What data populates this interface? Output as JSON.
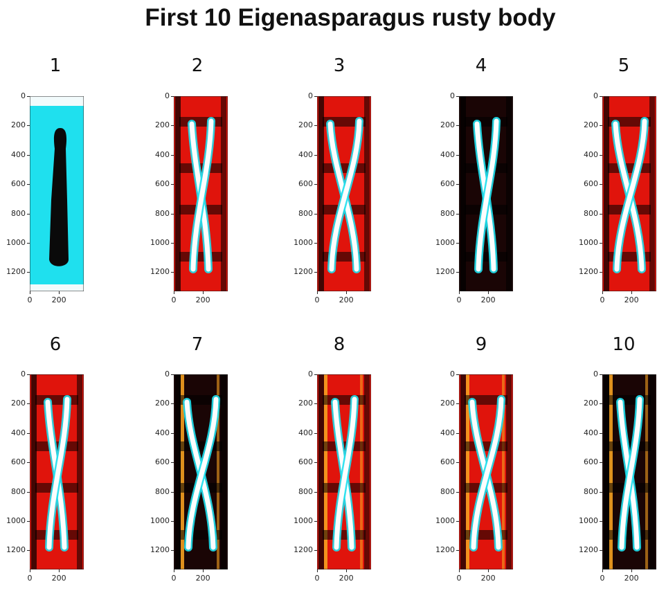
{
  "title": "First 10 Eigenasparagus rusty body",
  "panels": [
    {
      "label": "1",
      "style": "mean"
    },
    {
      "label": "2",
      "style": "eigen"
    },
    {
      "label": "3",
      "style": "eigen"
    },
    {
      "label": "4",
      "style": "eigen"
    },
    {
      "label": "5",
      "style": "eigen"
    },
    {
      "label": "6",
      "style": "eigen"
    },
    {
      "label": "7",
      "style": "eigen"
    },
    {
      "label": "8",
      "style": "eigen"
    },
    {
      "label": "9",
      "style": "eigen"
    },
    {
      "label": "10",
      "style": "eigen"
    }
  ],
  "y_ticks": [
    "0",
    "200",
    "400",
    "600",
    "800",
    "1000",
    "1200"
  ],
  "x_ticks": [
    "0",
    "200"
  ],
  "colors": {
    "cyan": "#1fe0ee",
    "red": "#e0140c",
    "dark": "#1a0505",
    "white": "#fdfdfd",
    "orange": "#f5a020"
  }
}
